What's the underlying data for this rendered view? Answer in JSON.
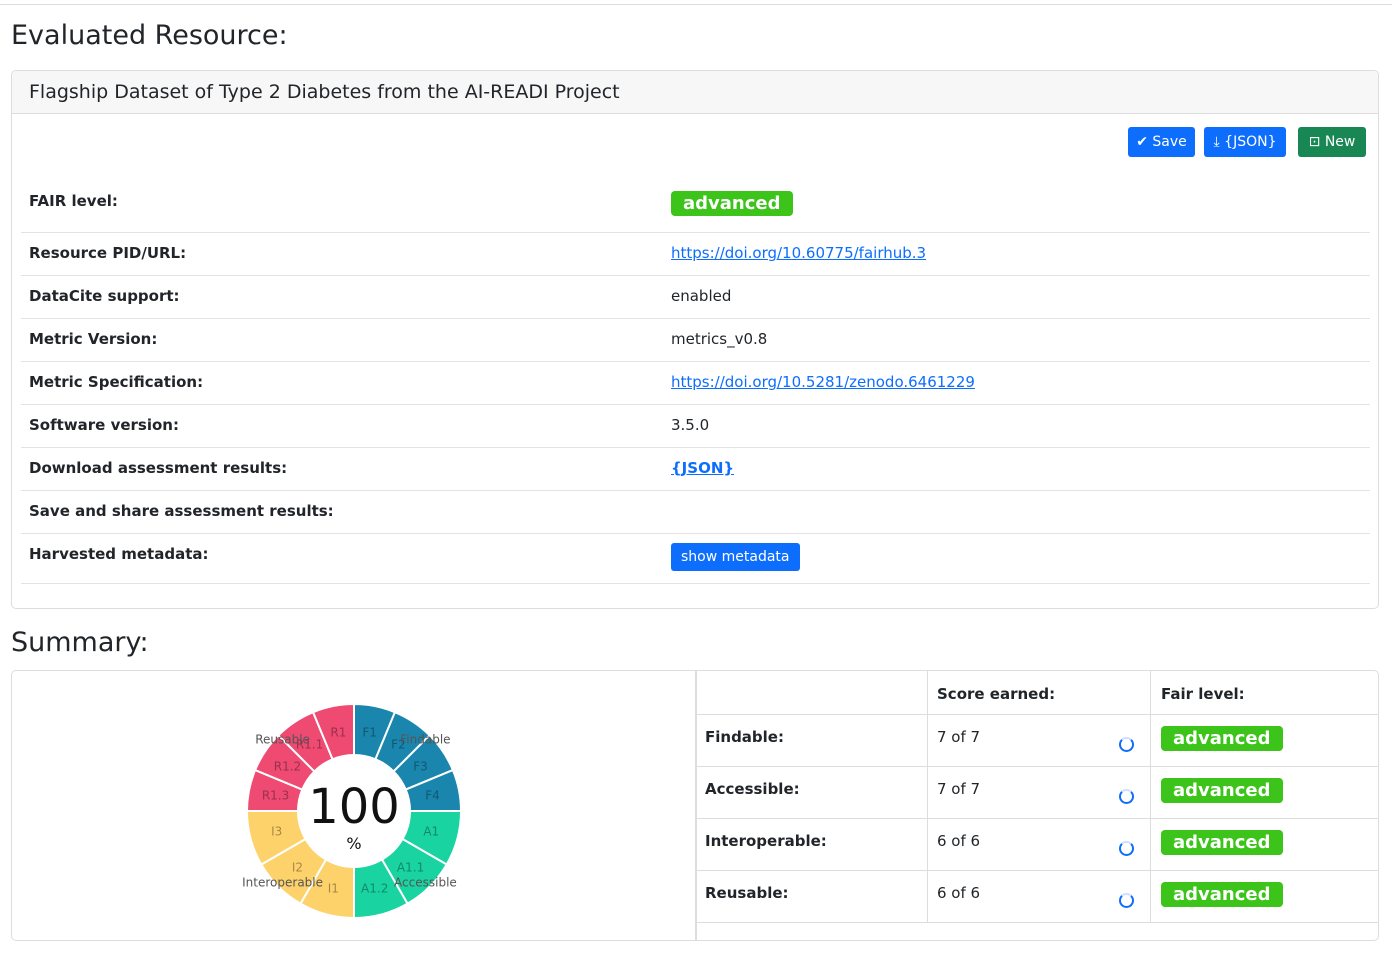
{
  "header": {
    "title": "Evaluated Resource:"
  },
  "resource": {
    "title": "Flagship Dataset of Type 2 Diabetes from the AI-READI Project",
    "buttons": [
      "Save",
      "{JSON}",
      "New"
    ],
    "rows": [
      {
        "label": "FAIR level:",
        "value": "advanced"
      },
      {
        "label": "Resource PID/URL:",
        "value": "https://doi.org/10.60775/fairhub.3"
      },
      {
        "label": "DataCite support:",
        "value": "enabled"
      },
      {
        "label": "Metric Version:",
        "value": "metrics_v0.8"
      },
      {
        "label": "Metric Specification:",
        "value": "https://doi.org/10.5281/zenodo.6461229"
      },
      {
        "label": "Software version:",
        "value": "3.5.0"
      },
      {
        "label": "Download assessment results:",
        "value": "{JSON}"
      },
      {
        "label": "Save and share assessment results:"
      },
      {
        "label": "Harvested metadata:",
        "value": "show metadata"
      }
    ]
  },
  "summary": {
    "title": "Summary:",
    "chart": {
      "center": 100,
      "unit": "%",
      "groups": [
        {
          "name": "Findable",
          "color": "#1a86ad",
          "metrics": [
            "F1",
            "F2",
            "F3",
            "F4"
          ]
        },
        {
          "name": "Accessible",
          "color": "#19d3a0",
          "metrics": [
            "A1",
            "A1.1",
            "A1.2"
          ]
        },
        {
          "name": "Interoperable",
          "color": "#fdd26b",
          "metrics": [
            "I1",
            "I2",
            "I3"
          ]
        },
        {
          "name": "Reusable",
          "color": "#ee4a72",
          "metrics": [
            "R1",
            "R1.1",
            "R1.2",
            "R1.3"
          ]
        }
      ]
    },
    "table": {
      "headers": [
        "Score earned:",
        "Fair level:"
      ],
      "rows": [
        [
          "Findable:",
          "7 of 7",
          "advanced"
        ],
        [
          "Accessible:",
          "7 of 7",
          "advanced"
        ],
        [
          "Interoperable:",
          "6 of 6",
          "advanced"
        ],
        [
          "Reusable:",
          "6 of 6",
          "advanced"
        ]
      ]
    }
  }
}
